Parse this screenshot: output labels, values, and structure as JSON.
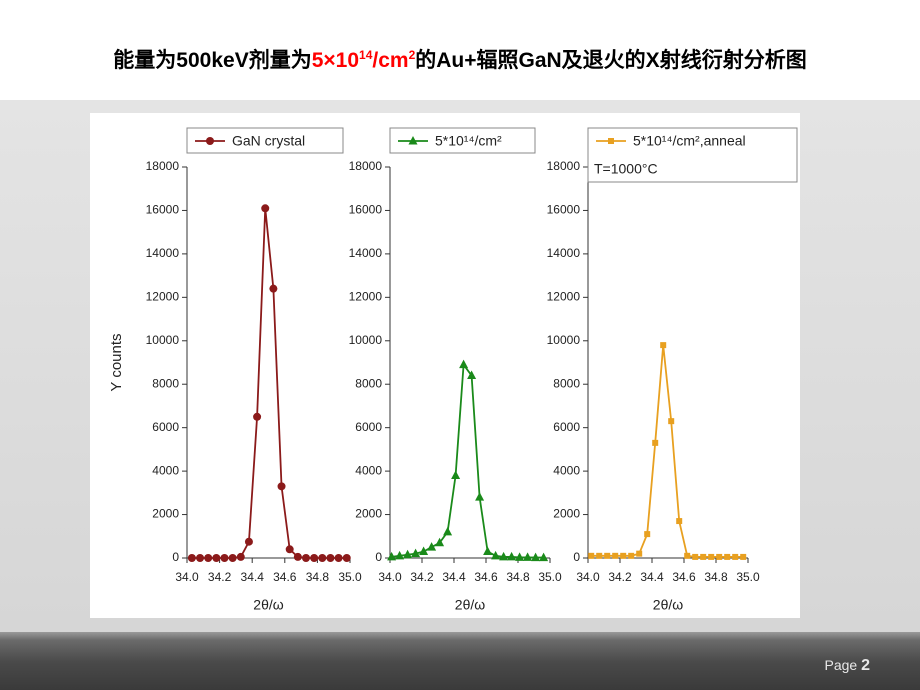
{
  "slide": {
    "title_parts": [
      {
        "text": "能量为500keV剂量为",
        "color": "#000000"
      },
      {
        "text": "5×10",
        "color": "#ff0000"
      },
      {
        "text": "14",
        "color": "#ff0000",
        "sup": true
      },
      {
        "text": "/cm",
        "color": "#ff0000"
      },
      {
        "text": "2",
        "color": "#ff0000",
        "sup": true
      },
      {
        "text": "的Au+辐照GaN及退火的X射线衍射分析图",
        "color": "#000000"
      }
    ],
    "page_label": "Page",
    "page_number": 2
  },
  "chart_data": [
    {
      "type": "line",
      "xlabel": "2θ/ω",
      "ylabel": "Y counts",
      "x": [
        34.03,
        34.08,
        34.13,
        34.18,
        34.23,
        34.28,
        34.33,
        34.38,
        34.43,
        34.48,
        34.53,
        34.58,
        34.63,
        34.68,
        34.73,
        34.78,
        34.83,
        34.88,
        34.93,
        34.98
      ],
      "series": [
        {
          "name": "GaN crystal",
          "color": "#8b1a1a",
          "marker": "circle",
          "values": [
            0,
            0,
            0,
            0,
            0,
            0,
            50,
            750,
            6500,
            16100,
            12400,
            3300,
            400,
            50,
            0,
            0,
            0,
            0,
            0,
            0
          ]
        }
      ],
      "xlim": [
        34.0,
        35.0
      ],
      "xticks": [
        {
          "value": 34.0,
          "label": "34.0"
        },
        {
          "value": 34.2,
          "label": "34.2"
        },
        {
          "value": 34.4,
          "label": "34.4"
        },
        {
          "value": 34.6,
          "label": "34.6"
        },
        {
          "value": 34.8,
          "label": "34.8"
        },
        {
          "value": 35.0,
          "label": "35.0"
        }
      ],
      "ylim": [
        0,
        18000
      ],
      "yticks": [
        0,
        2000,
        4000,
        6000,
        8000,
        10000,
        12000,
        14000,
        16000,
        18000
      ]
    },
    {
      "type": "line",
      "xlabel": "2θ/ω",
      "x": [
        34.01,
        34.06,
        34.11,
        34.16,
        34.21,
        34.26,
        34.31,
        34.36,
        34.41,
        34.46,
        34.51,
        34.56,
        34.61,
        34.66,
        34.71,
        34.76,
        34.81,
        34.86,
        34.91,
        34.96
      ],
      "series": [
        {
          "name": "5*10¹⁴/cm²",
          "color": "#1a8a1a",
          "marker": "triangle",
          "values": [
            50,
            100,
            150,
            200,
            300,
            500,
            700,
            1200,
            3800,
            8900,
            8400,
            2800,
            300,
            100,
            50,
            50,
            30,
            30,
            20,
            20
          ]
        }
      ],
      "xlim": [
        34.0,
        35.0
      ],
      "xticks": [
        {
          "value": 34.0,
          "label": "34.0"
        },
        {
          "value": 34.2,
          "label": "34.2"
        },
        {
          "value": 34.4,
          "label": "34.4"
        },
        {
          "value": 34.6,
          "label": "34.6"
        },
        {
          "value": 34.8,
          "label": "34.8"
        },
        {
          "value": 35.0,
          "label": "35.0"
        }
      ],
      "ylim": [
        0,
        18000
      ],
      "yticks": [
        0,
        2000,
        4000,
        6000,
        8000,
        10000,
        12000,
        14000,
        16000,
        18000
      ]
    },
    {
      "type": "line",
      "xlabel": "2θ/ω",
      "annotation": "T=1000°C",
      "x": [
        34.02,
        34.07,
        34.12,
        34.17,
        34.22,
        34.27,
        34.32,
        34.37,
        34.42,
        34.47,
        34.52,
        34.57,
        34.62,
        34.67,
        34.72,
        34.77,
        34.82,
        34.87,
        34.92,
        34.97
      ],
      "series": [
        {
          "name": "5*10¹⁴/cm²,anneal",
          "color": "#e8a020",
          "marker": "square",
          "values": [
            100,
            100,
            100,
            100,
            100,
            100,
            200,
            1100,
            5300,
            9800,
            6300,
            1700,
            100,
            50,
            50,
            50,
            50,
            50,
            50,
            50
          ]
        }
      ],
      "xlim": [
        34.0,
        35.0
      ],
      "xticks": [
        {
          "value": 34.0,
          "label": "34.0"
        },
        {
          "value": 34.2,
          "label": "34.2"
        },
        {
          "value": 34.4,
          "label": "34.4"
        },
        {
          "value": 34.6,
          "label": "34.6"
        },
        {
          "value": 34.8,
          "label": "34.8"
        },
        {
          "value": 35.0,
          "label": "35.0"
        }
      ],
      "ylim": [
        0,
        18000
      ],
      "yticks": [
        0,
        2000,
        4000,
        6000,
        8000,
        10000,
        12000,
        14000,
        16000,
        18000
      ]
    }
  ]
}
